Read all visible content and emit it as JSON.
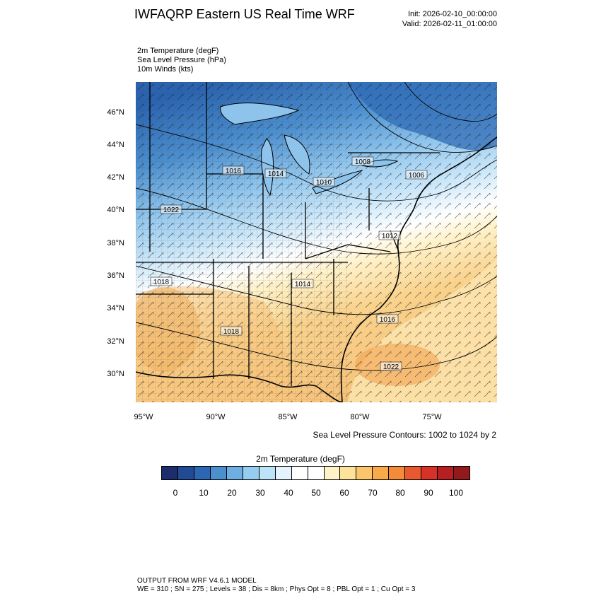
{
  "header": {
    "title": "IWFAQRP Eastern US Real Time WRF",
    "init": "Init: 2026-02-10_00:00:00",
    "valid": "Valid: 2026-02-11_01:00:00"
  },
  "fields": [
    "2m Temperature   (degF)",
    "Sea Level Pressure   (hPa)",
    "10m Winds   (kts)"
  ],
  "map": {
    "lat_labels": [
      "46°N",
      "44°N",
      "42°N",
      "40°N",
      "38°N",
      "36°N",
      "34°N",
      "32°N",
      "30°N"
    ],
    "lon_labels": [
      "95°W",
      "90°W",
      "85°W",
      "80°W",
      "75°W"
    ],
    "isobar_labels": [
      "1016",
      "1014",
      "1010",
      "1008",
      "1006",
      "1022",
      "1012",
      "1018",
      "1014",
      "1018",
      "1016",
      "1022"
    ],
    "colors": {
      "cold": "#2a64b0",
      "cool": "#8ec4ec",
      "neutral": "#ffffff",
      "warm": "#f6c67a",
      "hot": "#f2a74e",
      "water": "#a8d4f3"
    }
  },
  "contour_note": "Sea Level Pressure Contours: 1002 to 1024 by 2",
  "colorbar": {
    "title": "2m Temperature  (degF)",
    "labels": [
      "0",
      "10",
      "20",
      "30",
      "40",
      "50",
      "60",
      "70",
      "80",
      "90",
      "100"
    ],
    "colors": [
      "#1c2d6b",
      "#234a94",
      "#2b67b2",
      "#4c8fcf",
      "#6eaee0",
      "#95ccef",
      "#bde3f8",
      "#e4f3fc",
      "#ffffff",
      "#ffffff",
      "#fff2c6",
      "#fde39a",
      "#fbc66b",
      "#f8a94a",
      "#f48b3a",
      "#e9592f",
      "#d63228",
      "#b81f22",
      "#921a1c"
    ]
  },
  "footer": {
    "line1": "OUTPUT FROM WRF V4.6.1 MODEL",
    "line2": "WE = 310 ; SN = 275 ; Levels = 38 ; Dis = 8km ; Phys Opt = 8 ; PBL Opt = 1 ; Cu Opt = 3"
  }
}
